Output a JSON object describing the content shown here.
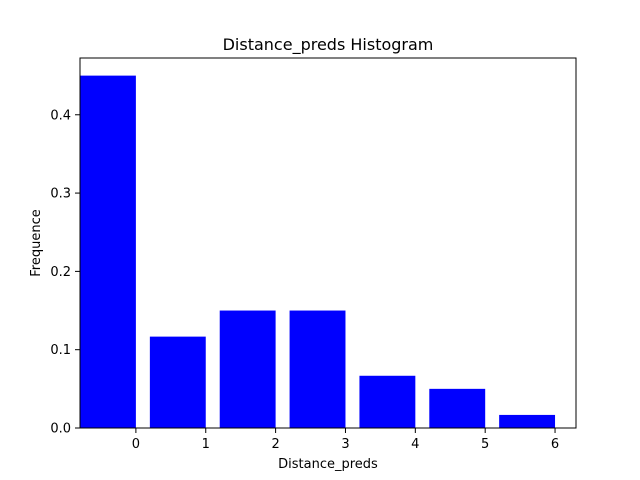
{
  "chart_data": {
    "type": "bar",
    "title": "Distance_preds Histogram",
    "xlabel": "Distance_preds",
    "ylabel": "Frequence",
    "categories": [
      "0",
      "1",
      "2",
      "3",
      "4",
      "5",
      "6"
    ],
    "values": [
      0.45,
      0.1167,
      0.15,
      0.15,
      0.0667,
      0.05,
      0.0167
    ],
    "bar_color": "#0000ff",
    "xlim": [
      -0.8,
      6.3
    ],
    "ylim": [
      0,
      0.4725
    ],
    "xticks": [
      0,
      1,
      2,
      3,
      4,
      5,
      6
    ],
    "xtick_labels": [
      "0",
      "1",
      "2",
      "3",
      "4",
      "5",
      "6"
    ],
    "yticks": [
      0.0,
      0.1,
      0.2,
      0.3,
      0.4
    ],
    "ytick_labels": [
      "0.0",
      "0.1",
      "0.2",
      "0.3",
      "0.4"
    ],
    "grid": false,
    "legend": "none"
  }
}
